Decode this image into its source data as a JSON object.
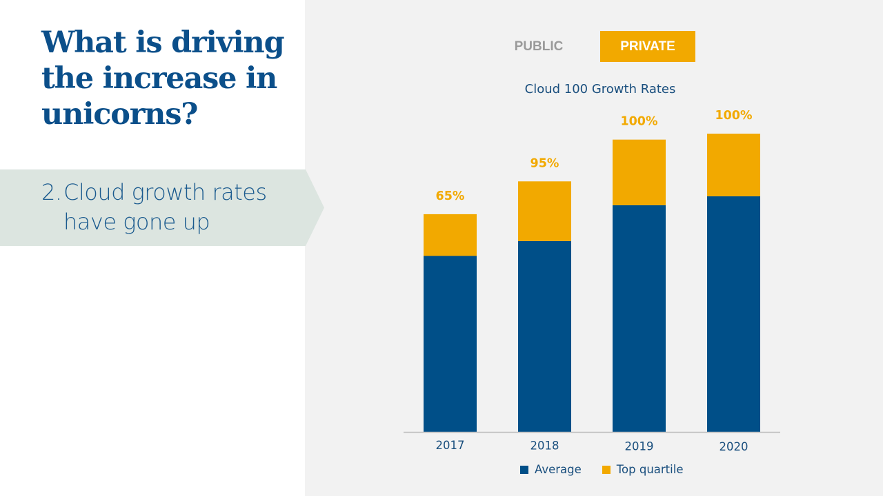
{
  "slide": {
    "title": "What is driving the increase in unicorns?",
    "point": {
      "number": "2.",
      "line1": "Cloud growth rates",
      "line2": "have gone up"
    }
  },
  "toggles": {
    "public_label": "PUBLIC",
    "private_label": "PRIVATE",
    "selected": "PRIVATE"
  },
  "colors": {
    "brand_blue": "#0b4f8a",
    "average": "#004f88",
    "top_quartile": "#f2a900",
    "banner": "#dce5e0",
    "panel_bg": "#f2f2f2",
    "axis_text": "#1a4f7e"
  },
  "chart_data": {
    "type": "bar",
    "stacked": true,
    "title": "Cloud 100 Growth Rates",
    "xlabel": "",
    "ylabel": "",
    "y_axis_visible": false,
    "grid": false,
    "categories": [
      "2017",
      "2018",
      "2019",
      "2020"
    ],
    "series": [
      {
        "name": "Average",
        "color": "#004f88",
        "relative_height": [
          0.59,
          0.64,
          0.76,
          0.79
        ]
      },
      {
        "name": "Top quartile",
        "color": "#f2a900",
        "relative_height": [
          0.14,
          0.2,
          0.22,
          0.21
        ]
      }
    ],
    "relative_height_note": "Bar segment heights as fractions of the tallest bar (2020); no y-axis values are shown",
    "data_labels": [
      "65%",
      "95%",
      "100%",
      "100%"
    ],
    "data_labels_note": "Printed labels above each bar, in top-quartile color",
    "legend": {
      "entries": [
        "Average",
        "Top quartile"
      ],
      "position": "bottom-center"
    }
  }
}
